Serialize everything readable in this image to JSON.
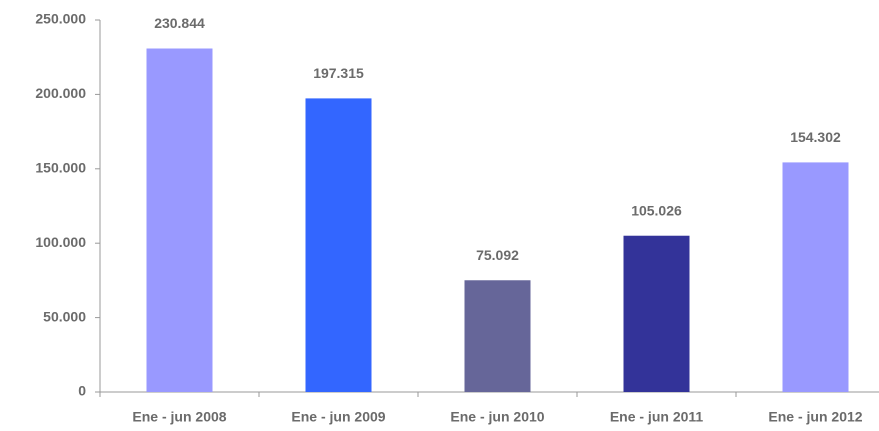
{
  "chart_data": {
    "type": "bar",
    "categories": [
      "Ene - jun 2008",
      "Ene - jun 2009",
      "Ene - jun 2010",
      "Ene - jun 2011",
      "Ene - jun 2012"
    ],
    "values": [
      230844,
      197315,
      75092,
      105026,
      154302
    ],
    "value_labels": [
      "230.844",
      "197.315",
      "75.092",
      "105.026",
      "154.302"
    ],
    "colors": [
      "#9999ff",
      "#3366ff",
      "#666699",
      "#333399",
      "#9999ff"
    ],
    "ylim": [
      0,
      250000
    ],
    "yticks": [
      0,
      {
        "value": 50000,
        "label": "50.000"
      },
      {
        "value": 100000,
        "label": "100.000"
      },
      {
        "value": 150000,
        "label": "150.000"
      },
      {
        "value": 200000,
        "label": "200.000"
      },
      {
        "value": 250000,
        "label": "250.000"
      }
    ],
    "grid": false
  }
}
